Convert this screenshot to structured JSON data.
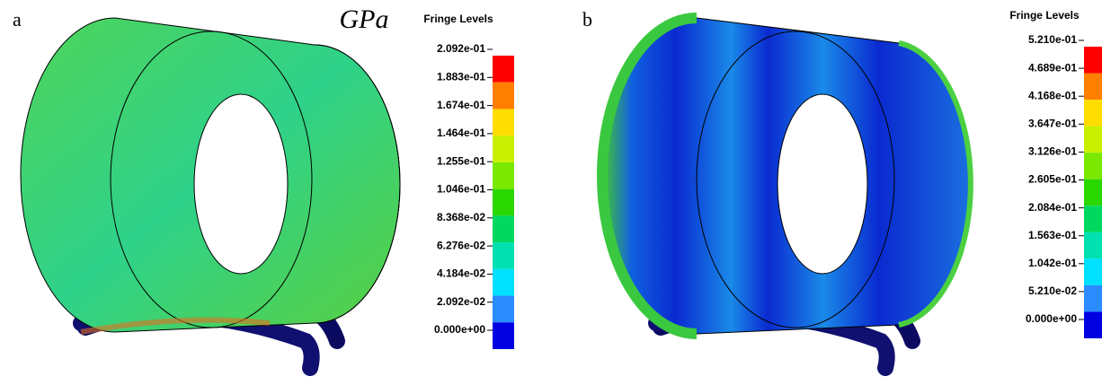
{
  "panels": [
    {
      "label": "a",
      "unit": "GPa",
      "legend": {
        "title": "Fringe Levels",
        "levels": [
          "2.092e-01",
          "1.883e-01",
          "1.674e-01",
          "1.464e-01",
          "1.255e-01",
          "1.046e-01",
          "8.368e-02",
          "6.276e-02",
          "4.184e-02",
          "2.092e-02",
          "0.000e+00"
        ],
        "colors": [
          "#ff0000",
          "#ff7f00",
          "#ffdd00",
          "#c8f000",
          "#7ae800",
          "#2ad800",
          "#00d860",
          "#00e0b0",
          "#00e0ff",
          "#2a8cff",
          "#0000e0"
        ]
      }
    },
    {
      "label": "b",
      "legend": {
        "title": "Fringe Levels",
        "levels": [
          "5.210e-01",
          "4.689e-01",
          "4.168e-01",
          "3.647e-01",
          "3.126e-01",
          "2.605e-01",
          "2.084e-01",
          "1.563e-01",
          "1.042e-01",
          "5.210e-02",
          "0.000e+00"
        ],
        "colors": [
          "#ff0000",
          "#ff7f00",
          "#ffdd00",
          "#c8f000",
          "#7ae800",
          "#2ad800",
          "#00d860",
          "#00e0b0",
          "#00e0ff",
          "#2a8cff",
          "#0000e0"
        ]
      }
    }
  ]
}
